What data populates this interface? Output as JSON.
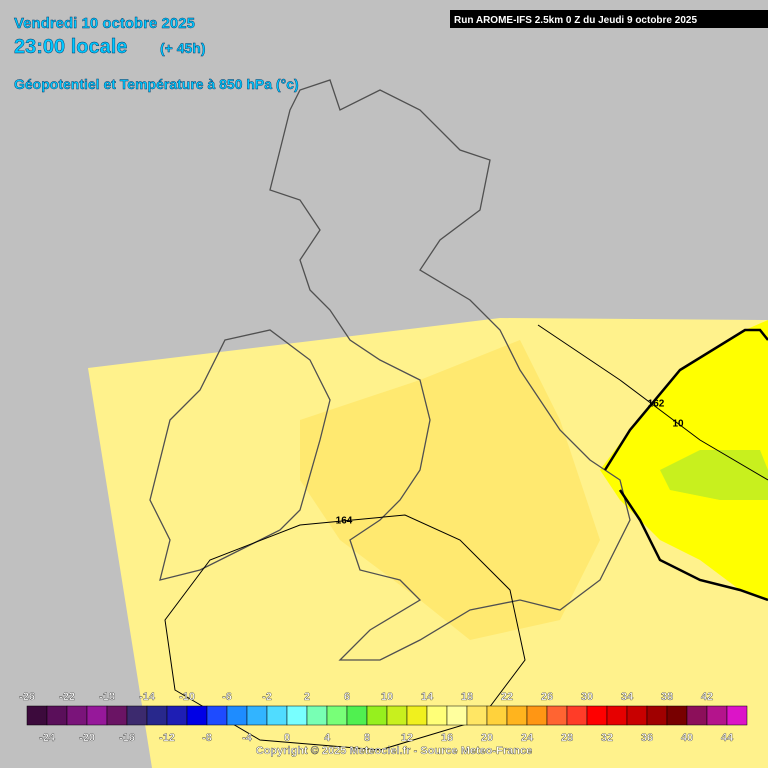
{
  "header": {
    "date": "Vendredi 10 octobre 2025",
    "time": "23:00 locale",
    "lead": "(+ 45h)",
    "subtitle": "Géopotentiel et Température à 850 hPa (°c)"
  },
  "run_info": "Run AROME-IFS 2.5km 0 Z du Jeudi 9 octobre 2025",
  "contour_labels": [
    "162",
    "10",
    "164"
  ],
  "legend": {
    "values": [
      -26,
      -24,
      -22,
      -20,
      -18,
      -16,
      -14,
      -12,
      -10,
      -8,
      -6,
      -4,
      -2,
      0,
      2,
      4,
      6,
      8,
      10,
      12,
      14,
      16,
      18,
      20,
      22,
      24,
      26,
      28,
      30,
      32,
      34,
      36,
      38,
      40,
      42,
      44
    ],
    "colors": [
      "#3c0a3c",
      "#5a0f5a",
      "#7a147a",
      "#96189a",
      "#6a1464",
      "#3c2a6e",
      "#28288c",
      "#1e1eb4",
      "#0000e6",
      "#1e4bff",
      "#1e8cff",
      "#32b4ff",
      "#50dcff",
      "#78ffff",
      "#78ffb4",
      "#78ff78",
      "#50f050",
      "#96f01e",
      "#c8f01e",
      "#f0f01e",
      "#ffff78",
      "#ffff9e",
      "#ffe664",
      "#ffd23c",
      "#ffb41e",
      "#ff9614",
      "#ff6432",
      "#ff3c28",
      "#ff0000",
      "#e60000",
      "#c80000",
      "#a00000",
      "#780000",
      "#8c0f5a",
      "#b4148c",
      "#dc14c8"
    ]
  },
  "copyright": "Copyright © 2025 Meteociel.fr - Source Meteo-France"
}
